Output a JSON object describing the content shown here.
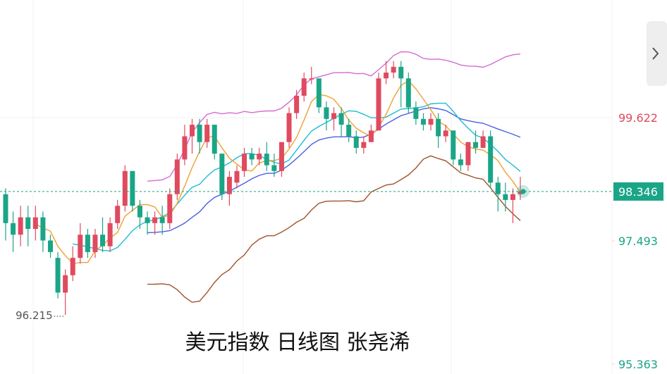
{
  "chart_data": {
    "type": "candlestick",
    "title": "美元指数 日线图 张尧浠",
    "ylim": [
      95.194,
      101.654
    ],
    "yticks": [
      99.622,
      97.493,
      95.363
    ],
    "last_price": 98.346,
    "low_marker": 96.215,
    "up_color": "#e04a5f",
    "down_color": "#1aa587",
    "open": [
      98.3,
      97.8,
      97.6,
      97.9,
      97.7,
      97.9,
      97.5,
      97.2,
      96.6,
      96.9,
      97.2,
      97.6,
      97.3,
      97.6,
      97.4,
      97.8,
      98.1,
      98.7,
      98.1,
      97.9,
      97.8,
      97.9,
      97.8,
      98.3,
      98.9,
      99.3,
      99.5,
      99.2,
      99.5,
      99.0,
      98.3,
      98.5,
      98.7,
      99.0,
      98.9,
      99.0,
      98.8,
      98.7,
      99.2,
      99.7,
      100.0,
      100.3,
      100.3,
      99.8,
      99.6,
      99.7,
      99.5,
      99.3,
      99.1,
      99.2,
      99.4,
      100.3,
      100.4,
      100.5,
      100.3,
      99.8,
      99.6,
      99.5,
      99.6,
      99.3,
      99.4,
      98.9,
      98.8,
      99.2,
      99.1,
      99.3,
      98.5,
      98.3,
      98.2,
      98.3
    ],
    "high": [
      98.4,
      98.0,
      98.1,
      98.1,
      98.1,
      98.0,
      97.6,
      97.3,
      97.0,
      97.4,
      97.8,
      97.7,
      97.7,
      97.9,
      97.9,
      98.2,
      98.8,
      98.7,
      98.2,
      98.0,
      98.0,
      98.1,
      98.4,
      99.0,
      99.5,
      99.6,
      99.6,
      99.6,
      99.5,
      99.0,
      98.7,
      98.8,
      99.1,
      99.1,
      99.1,
      99.2,
      99.0,
      99.2,
      99.8,
      100.1,
      100.4,
      100.5,
      100.3,
      99.9,
      99.8,
      99.8,
      99.6,
      99.4,
      99.3,
      99.5,
      100.4,
      100.6,
      100.6,
      100.6,
      100.4,
      99.9,
      99.7,
      99.7,
      99.7,
      99.5,
      99.4,
      99.0,
      99.2,
      99.4,
      99.4,
      99.4,
      98.6,
      98.5,
      98.4,
      98.6
    ],
    "low": [
      97.5,
      97.3,
      97.4,
      97.4,
      97.5,
      97.3,
      97.2,
      96.5,
      96.215,
      96.8,
      97.1,
      97.2,
      97.2,
      97.3,
      97.3,
      97.7,
      98.0,
      98.0,
      97.7,
      97.6,
      97.6,
      97.6,
      97.7,
      98.2,
      98.8,
      99.0,
      99.0,
      99.1,
      98.9,
      98.2,
      98.1,
      98.4,
      98.6,
      98.8,
      98.8,
      98.7,
      98.6,
      98.6,
      99.1,
      99.6,
      99.9,
      100.2,
      99.7,
      99.4,
      99.4,
      99.3,
      99.2,
      99.0,
      99.0,
      99.2,
      99.4,
      100.2,
      100.3,
      99.8,
      99.7,
      99.5,
      99.4,
      99.4,
      99.1,
      99.2,
      98.8,
      98.7,
      98.7,
      99.0,
      99.1,
      98.4,
      98.0,
      98.0,
      97.8,
      98.2
    ],
    "close": [
      97.8,
      97.6,
      97.9,
      97.7,
      97.9,
      97.5,
      97.3,
      96.6,
      96.9,
      97.2,
      97.6,
      97.3,
      97.6,
      97.4,
      97.8,
      98.1,
      98.7,
      98.1,
      97.9,
      97.8,
      97.9,
      97.8,
      98.3,
      98.9,
      99.3,
      99.5,
      99.2,
      99.5,
      99.0,
      98.3,
      98.6,
      98.7,
      99.0,
      98.9,
      99.0,
      98.8,
      98.7,
      99.2,
      99.7,
      100.0,
      100.3,
      100.3,
      99.8,
      99.6,
      99.7,
      99.5,
      99.3,
      99.1,
      99.2,
      99.4,
      100.3,
      100.4,
      100.5,
      100.3,
      99.8,
      99.6,
      99.5,
      99.6,
      99.3,
      99.4,
      98.9,
      98.8,
      99.2,
      99.1,
      99.3,
      98.5,
      98.3,
      98.2,
      98.3,
      98.346
    ]
  }
}
